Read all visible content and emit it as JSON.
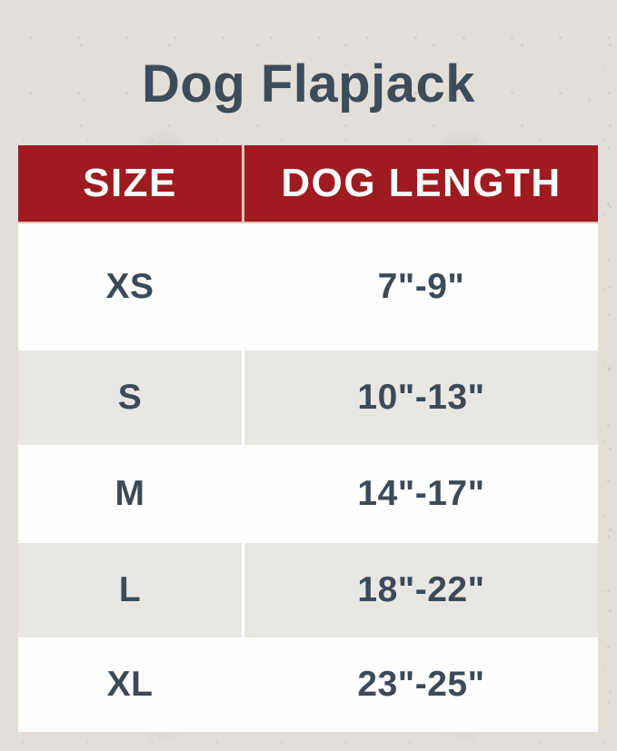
{
  "title": "Dog Flapjack",
  "table": {
    "headers": [
      "SIZE",
      "DOG LENGTH"
    ],
    "rows": [
      {
        "size": "XS",
        "length": "7\"-9\""
      },
      {
        "size": "S",
        "length": "10\"-13\""
      },
      {
        "size": "M",
        "length": "14\"-17\""
      },
      {
        "size": "L",
        "length": "18\"-22\""
      },
      {
        "size": "XL",
        "length": "23\"-25\""
      }
    ]
  },
  "colors": {
    "background": "#e3dfd8",
    "header_bg": "#9e1b20",
    "header_text": "#ffffff",
    "header_divider": "#eec9ba",
    "row_bg": "#fefefe",
    "row_alt_bg": "#e8e7e4",
    "body_text": "#3c4a58",
    "title_text": "#3d4c5b"
  },
  "chart_data": {
    "type": "table",
    "title": "Dog Flapjack",
    "columns": [
      "SIZE",
      "DOG LENGTH"
    ],
    "rows": [
      [
        "XS",
        "7\"-9\""
      ],
      [
        "S",
        "10\"-13\""
      ],
      [
        "M",
        "14\"-17\""
      ],
      [
        "L",
        "18\"-22\""
      ],
      [
        "XL",
        "23\"-25\""
      ]
    ]
  }
}
